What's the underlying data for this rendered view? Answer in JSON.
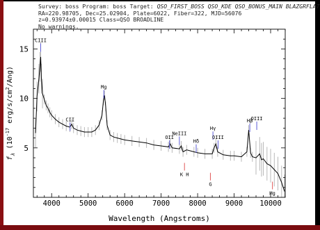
{
  "header": {
    "line1_prefix": "Survey: boss Program: boss Target: ",
    "line1_target": "QSO_FIRST_BOSS QSO_KDE QSO_BONUS_MAIN BLAZGRFLAT",
    "line2": "RA=220.98705, Dec=25.02904, Plate=6022, Fiber=322, MJD=56076",
    "line3": "z=0.93974±0.00015 Class=QSO BROADLINE",
    "line4": "No warnings."
  },
  "chart_data": {
    "type": "line",
    "title": "",
    "xlabel": "Wavelength (Angstroms)",
    "ylabel": "f_λ (10⁻¹⁷ erg/s/cm²/Ang)",
    "ylabel_parts": {
      "f": "f",
      "lambda": "λ",
      "pre": " (10",
      "exp1": "-17",
      "mid": " erg/s/cm",
      "exp2": "2",
      "post": "/Ang)"
    },
    "xlim": [
      3500,
      10400
    ],
    "ylim": [
      0,
      17
    ],
    "xticks": [
      4000,
      5000,
      6000,
      7000,
      8000,
      9000,
      10000
    ],
    "xtick_labels": [
      "4000",
      "5000",
      "6000",
      "7000",
      "8000",
      "9000",
      "10000"
    ],
    "yticks": [
      5,
      10,
      15
    ],
    "ytick_labels": [
      "5",
      "10",
      "15"
    ],
    "spectrum": [
      [
        3560,
        6.5
      ],
      [
        3600,
        10.2
      ],
      [
        3650,
        12.0
      ],
      [
        3680,
        13.2
      ],
      [
        3700,
        14.2
      ],
      [
        3720,
        12.0
      ],
      [
        3750,
        10.5
      ],
      [
        3800,
        9.9
      ],
      [
        3850,
        9.3
      ],
      [
        3900,
        9.0
      ],
      [
        3950,
        8.6
      ],
      [
        4000,
        8.3
      ],
      [
        4100,
        7.9
      ],
      [
        4200,
        7.6
      ],
      [
        4300,
        7.4
      ],
      [
        4400,
        7.2
      ],
      [
        4500,
        7.1
      ],
      [
        4550,
        7.4
      ],
      [
        4600,
        7.0
      ],
      [
        4700,
        6.8
      ],
      [
        4800,
        6.7
      ],
      [
        4900,
        6.6
      ],
      [
        5000,
        6.6
      ],
      [
        5100,
        6.6
      ],
      [
        5200,
        6.8
      ],
      [
        5300,
        7.3
      ],
      [
        5380,
        8.3
      ],
      [
        5420,
        9.8
      ],
      [
        5450,
        10.3
      ],
      [
        5480,
        9.2
      ],
      [
        5520,
        7.3
      ],
      [
        5600,
        6.3
      ],
      [
        5700,
        6.1
      ],
      [
        5800,
        6.0
      ],
      [
        5900,
        5.9
      ],
      [
        6000,
        5.8
      ],
      [
        6200,
        5.7
      ],
      [
        6400,
        5.6
      ],
      [
        6600,
        5.5
      ],
      [
        6800,
        5.3
      ],
      [
        7000,
        5.2
      ],
      [
        7200,
        5.1
      ],
      [
        7250,
        5.4
      ],
      [
        7300,
        5.0
      ],
      [
        7500,
        4.9
      ],
      [
        7550,
        5.2
      ],
      [
        7600,
        4.6
      ],
      [
        7700,
        4.8
      ],
      [
        7900,
        4.6
      ],
      [
        8000,
        4.5
      ],
      [
        8200,
        4.4
      ],
      [
        8400,
        4.4
      ],
      [
        8450,
        5.0
      ],
      [
        8500,
        5.4
      ],
      [
        8550,
        4.6
      ],
      [
        8700,
        4.3
      ],
      [
        8900,
        4.2
      ],
      [
        9000,
        4.2
      ],
      [
        9200,
        4.1
      ],
      [
        9350,
        4.6
      ],
      [
        9400,
        6.8
      ],
      [
        9450,
        4.5
      ],
      [
        9500,
        4.1
      ],
      [
        9600,
        4.0
      ],
      [
        9700,
        4.4
      ],
      [
        9750,
        3.8
      ],
      [
        9800,
        3.9
      ],
      [
        9900,
        3.4
      ],
      [
        10000,
        3.2
      ],
      [
        10100,
        2.8
      ],
      [
        10200,
        2.4
      ],
      [
        10300,
        1.5
      ],
      [
        10380,
        0.6
      ]
    ],
    "emission_lines": [
      {
        "label": "CIII",
        "x": 3700,
        "y": 15.7
      },
      {
        "label": "CII",
        "x": 4505,
        "y": 7.7
      },
      {
        "label": "Mg",
        "x": 5430,
        "y": 11.0
      },
      {
        "label": "OII",
        "x": 7230,
        "y": 5.9
      },
      {
        "label": "NeIII",
        "x": 7500,
        "y": 6.3
      },
      {
        "label": "Hδ",
        "x": 7960,
        "y": 5.5
      },
      {
        "label": "Hγ",
        "x": 8420,
        "y": 6.8
      },
      {
        "label": "OIII",
        "x": 8560,
        "y": 5.9
      },
      {
        "label": "Hβ",
        "x": 9430,
        "y": 7.6
      },
      {
        "label": "OIII",
        "x": 9620,
        "y": 7.8
      }
    ],
    "absorption_lines": [
      {
        "label": "K H",
        "x": 7640,
        "y": 2.5
      },
      {
        "label": "G",
        "x": 8350,
        "y": 1.5
      },
      {
        "label": "Mg",
        "x": 10050,
        "y": 0.6
      }
    ],
    "colors": {
      "spectrum": "#000000",
      "error": "#b8b8b8",
      "emission": "#5b5bd6",
      "absorption": "#e05858",
      "axes": "#000000"
    }
  }
}
